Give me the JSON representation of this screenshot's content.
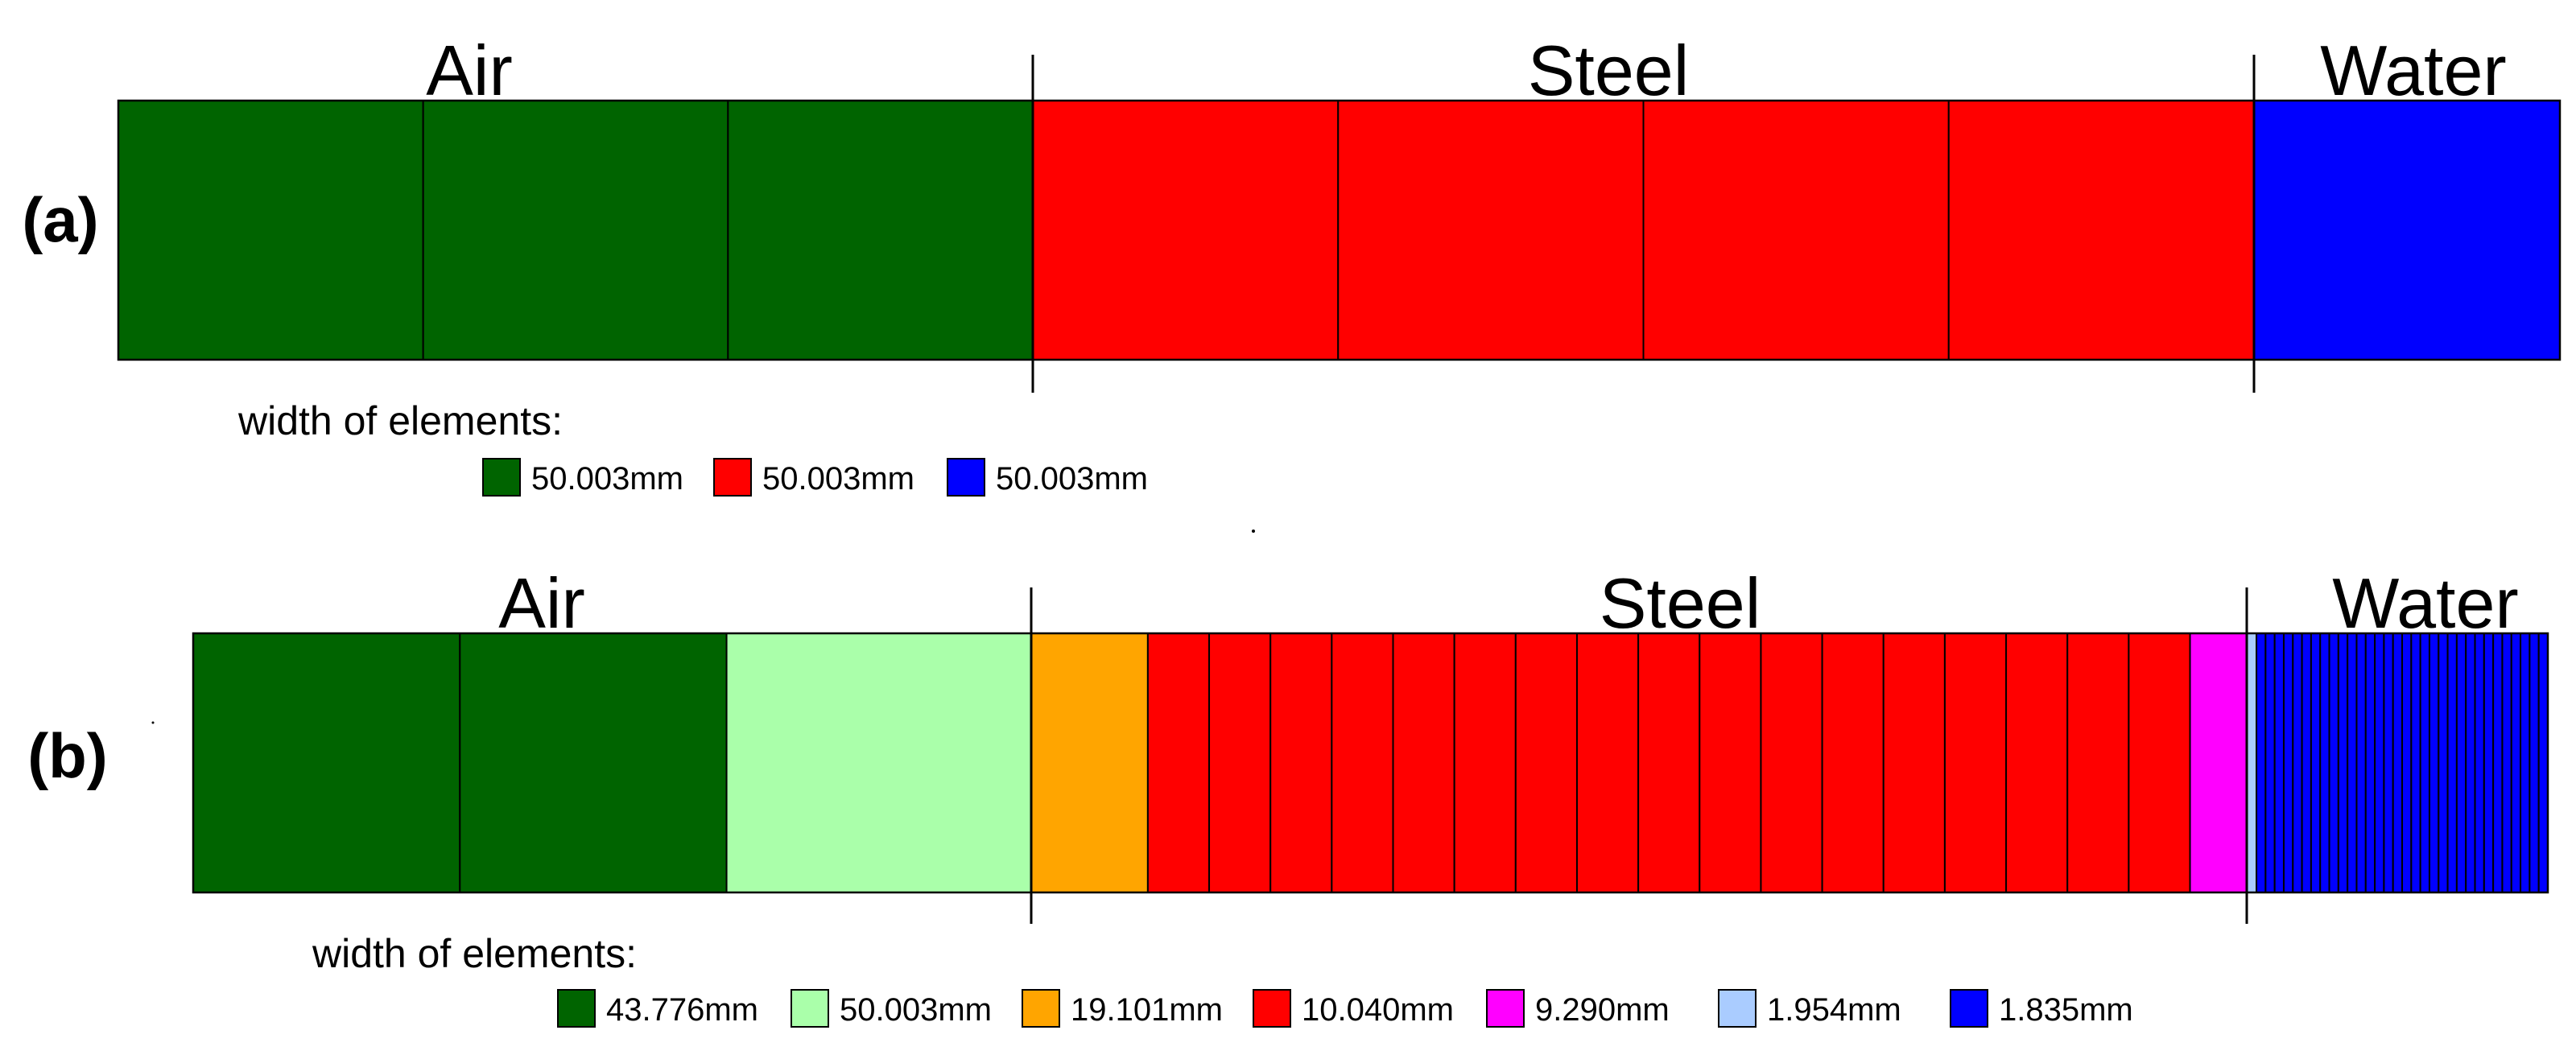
{
  "panels": [
    {
      "label": "(a)",
      "regions": [
        {
          "name": "Air",
          "elements": [
            {
              "color": "#006400",
              "width_mm": 50.003,
              "count": 3
            }
          ]
        },
        {
          "name": "Steel",
          "elements": [
            {
              "color": "#ff0000",
              "width_mm": 50.003,
              "count": 4
            }
          ]
        },
        {
          "name": "Water",
          "elements": [
            {
              "color": "#0000ff",
              "width_mm": 50.003,
              "count": 1
            }
          ]
        }
      ],
      "legend": {
        "title": "width of elements:",
        "items": [
          {
            "color": "#006400",
            "label": "50.003mm"
          },
          {
            "color": "#ff0000",
            "label": "50.003mm"
          },
          {
            "color": "#0000ff",
            "label": "50.003mm"
          }
        ]
      }
    },
    {
      "label": "(b)",
      "regions": [
        {
          "name": "Air",
          "elements": [
            {
              "color": "#006400",
              "width_mm": 43.776,
              "count": 2
            },
            {
              "color": "#aaffaa",
              "width_mm": 50.003,
              "count": 1
            }
          ]
        },
        {
          "name": "Steel",
          "elements": [
            {
              "color": "#ffa500",
              "width_mm": 19.101,
              "count": 1
            },
            {
              "color": "#ff0000",
              "width_mm": 10.04,
              "count": 17
            },
            {
              "color": "#ff00ff",
              "width_mm": 9.29,
              "count": 1
            }
          ]
        },
        {
          "name": "Water",
          "elements": [
            {
              "color": "#aaccff",
              "width_mm": 1.954,
              "count": 1
            },
            {
              "color": "#0000ff",
              "width_mm": 1.835,
              "count": 32
            }
          ]
        }
      ],
      "legend": {
        "title": "width of elements:",
        "items": [
          {
            "color": "#006400",
            "label": "43.776mm"
          },
          {
            "color": "#aaffaa",
            "label": "50.003mm"
          },
          {
            "color": "#ffa500",
            "label": "19.101mm"
          },
          {
            "color": "#ff0000",
            "label": "10.040mm"
          },
          {
            "color": "#ff00ff",
            "label": "9.290mm"
          },
          {
            "color": "#aaccff",
            "label": "1.954mm"
          },
          {
            "color": "#0000ff",
            "label": "1.835mm"
          }
        ]
      }
    }
  ]
}
